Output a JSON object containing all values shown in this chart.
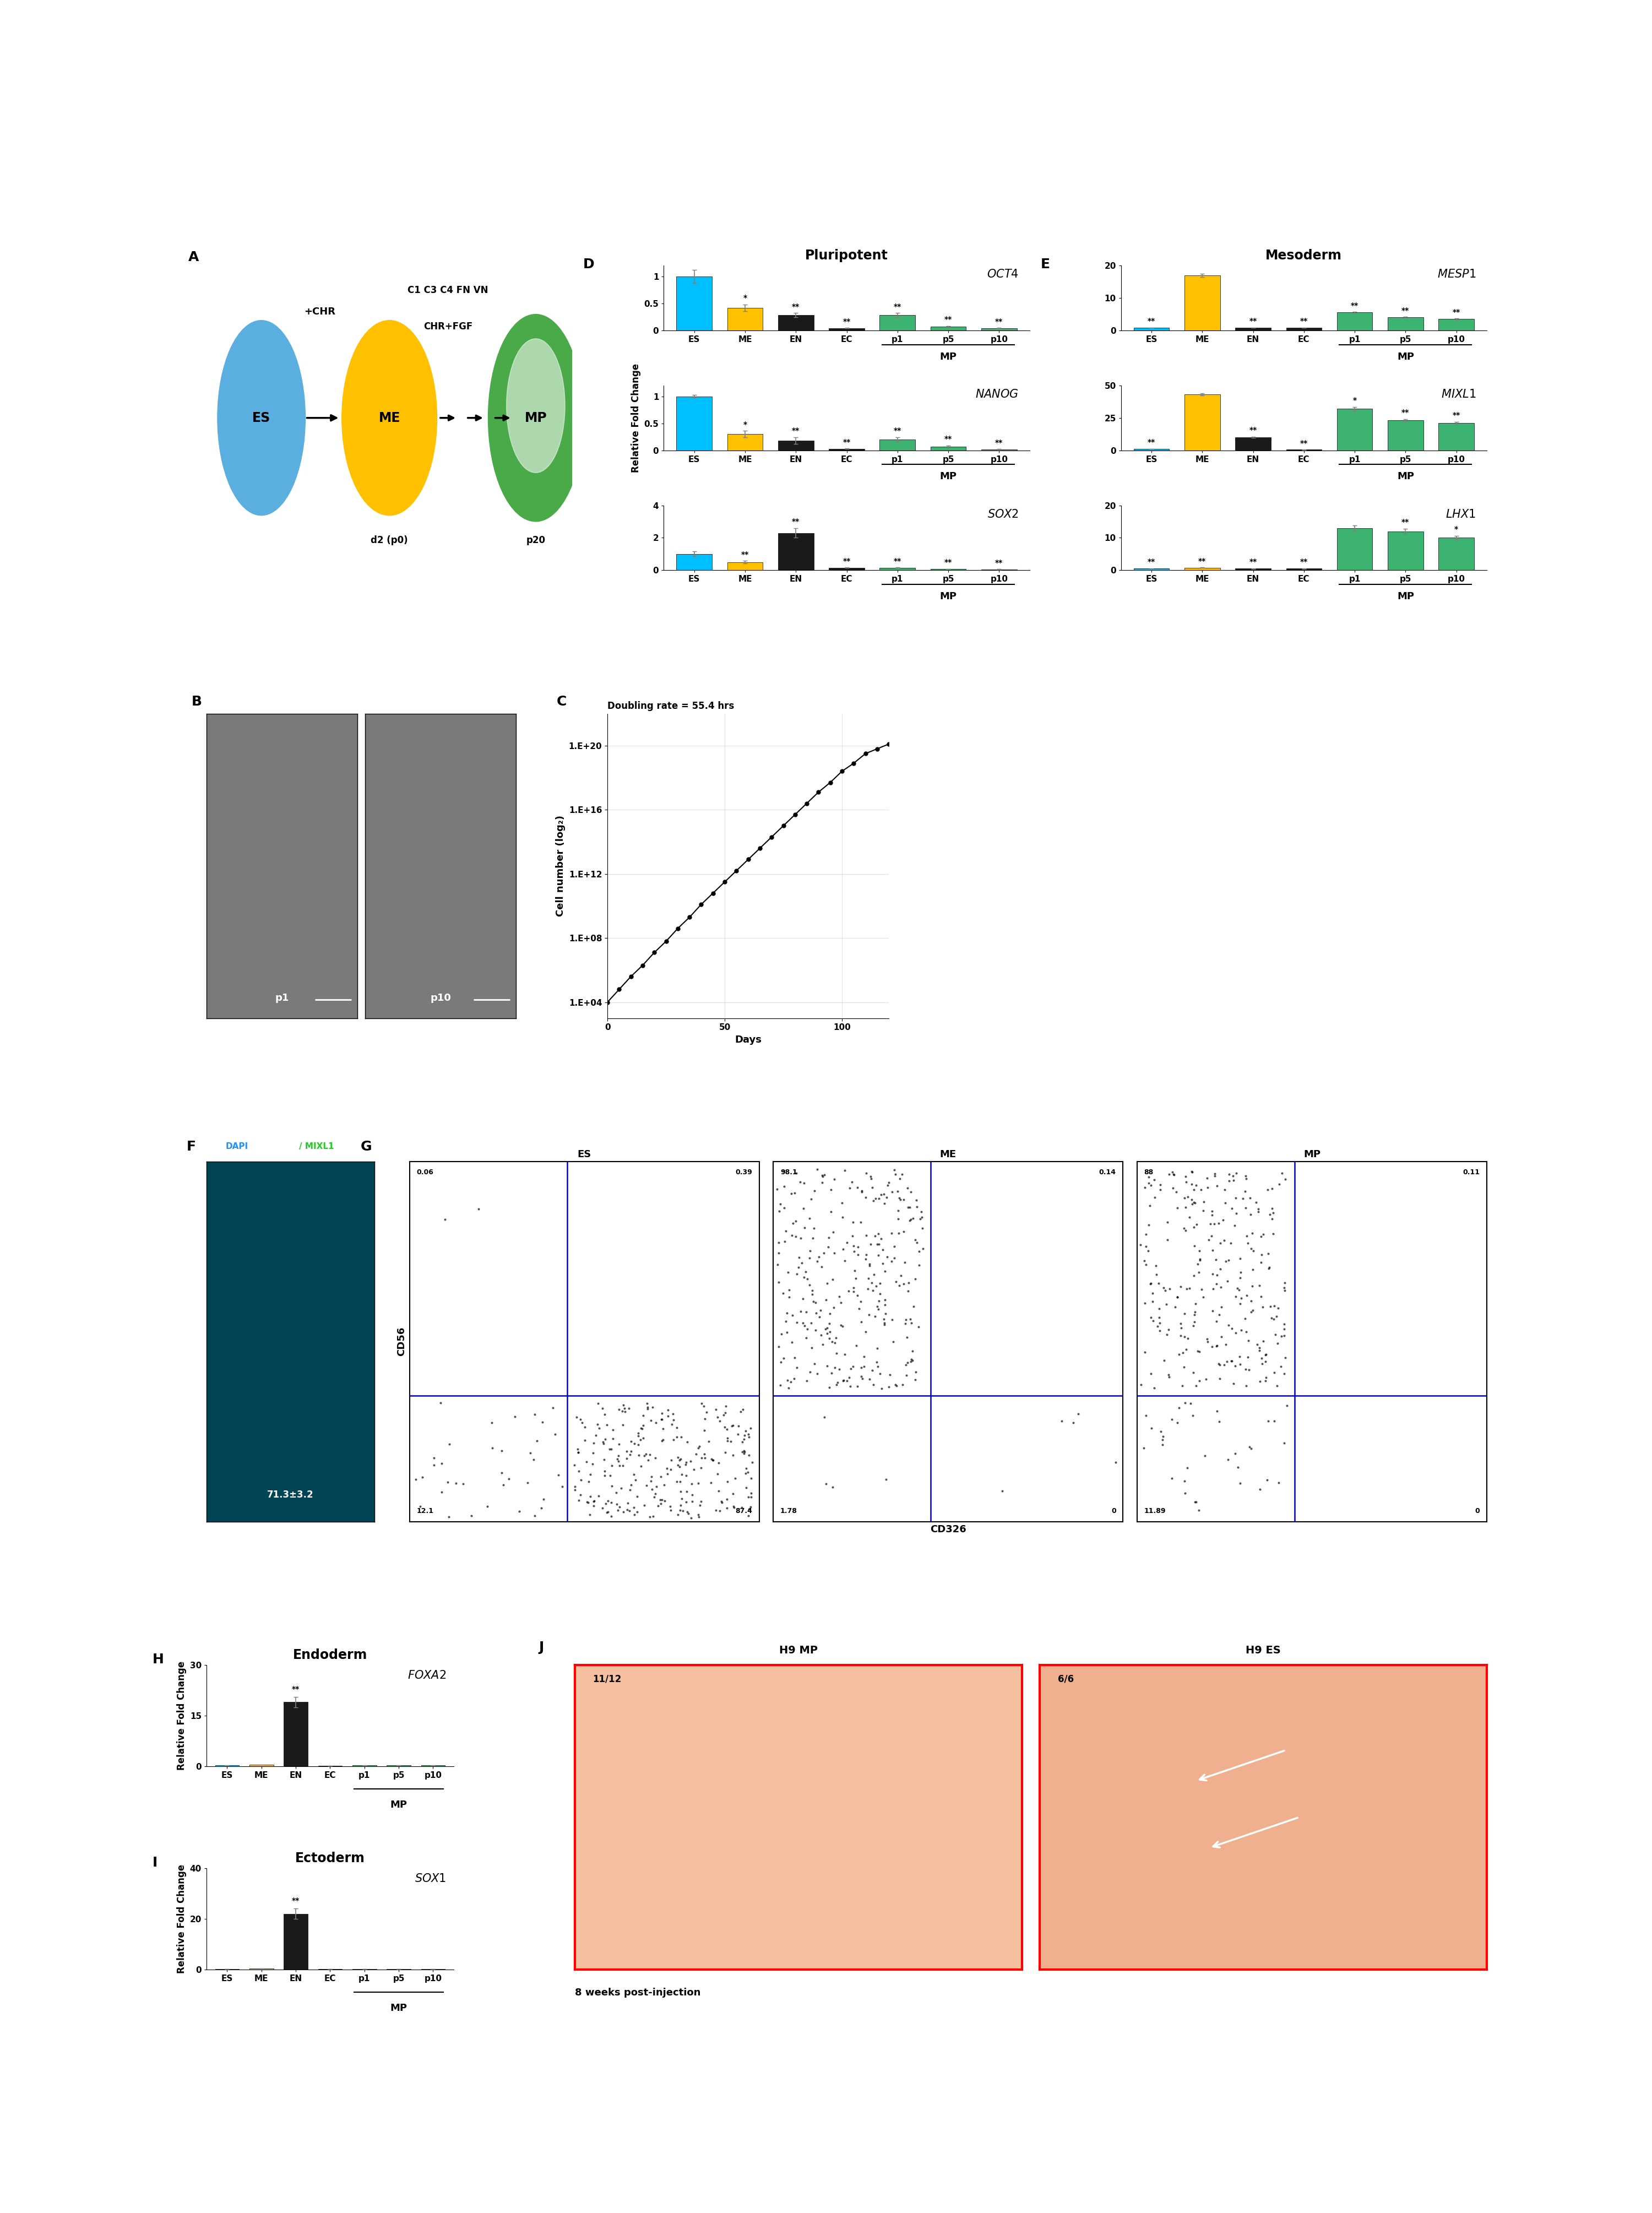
{
  "panel_labels": [
    "A",
    "B",
    "C",
    "D",
    "E",
    "F",
    "G",
    "H",
    "I",
    "J"
  ],
  "oct4": {
    "title": "OCT4",
    "ylim": [
      0,
      1.2
    ],
    "yticks": [
      0,
      0.5,
      1
    ],
    "values": [
      1.0,
      0.42,
      0.28,
      0.04,
      0.28,
      0.07,
      0.04
    ],
    "errors": [
      0.12,
      0.06,
      0.04,
      0.005,
      0.04,
      0.01,
      0.005
    ],
    "colors": [
      "#00bfff",
      "#ffc000",
      "#1a1a1a",
      "#1a1a1a",
      "#3cb371",
      "#3cb371",
      "#3cb371"
    ],
    "sig": [
      "",
      "*",
      "**",
      "**",
      "**",
      "**",
      "**"
    ],
    "categories": [
      "ES",
      "ME",
      "EN",
      "EC",
      "p1",
      "p5",
      "p10"
    ],
    "group_label": "MP"
  },
  "nanog": {
    "title": "NANOG",
    "ylim": [
      0,
      1.2
    ],
    "yticks": [
      0,
      0.5,
      1
    ],
    "values": [
      1.0,
      0.3,
      0.18,
      0.03,
      0.2,
      0.07,
      0.02
    ],
    "errors": [
      0.03,
      0.06,
      0.06,
      0.003,
      0.04,
      0.02,
      0.003
    ],
    "colors": [
      "#00bfff",
      "#ffc000",
      "#1a1a1a",
      "#1a1a1a",
      "#3cb371",
      "#3cb371",
      "#3cb371"
    ],
    "sig": [
      "",
      "*",
      "**",
      "**",
      "**",
      "**",
      "**"
    ],
    "categories": [
      "ES",
      "ME",
      "EN",
      "EC",
      "p1",
      "p5",
      "p10"
    ],
    "group_label": "MP"
  },
  "sox2": {
    "title": "SOX2",
    "ylim": [
      0,
      4
    ],
    "yticks": [
      0,
      2,
      4
    ],
    "values": [
      1.0,
      0.5,
      2.3,
      0.15,
      0.15,
      0.08,
      0.06
    ],
    "errors": [
      0.15,
      0.08,
      0.3,
      0.02,
      0.02,
      0.01,
      0.01
    ],
    "colors": [
      "#00bfff",
      "#ffc000",
      "#1a1a1a",
      "#1a1a1a",
      "#3cb371",
      "#3cb371",
      "#3cb371"
    ],
    "sig": [
      "",
      "**",
      "**",
      "**",
      "**",
      "**",
      "**"
    ],
    "categories": [
      "ES",
      "ME",
      "EN",
      "EC",
      "p1",
      "p5",
      "p10"
    ],
    "group_label": "MP"
  },
  "mesp1": {
    "title": "MESP1",
    "ylim": [
      0,
      20
    ],
    "yticks": [
      0,
      10,
      20
    ],
    "values": [
      0.8,
      17.0,
      0.8,
      0.8,
      5.5,
      4.0,
      3.5
    ],
    "errors": [
      0.05,
      0.5,
      0.05,
      0.05,
      0.2,
      0.15,
      0.15
    ],
    "colors": [
      "#00bfff",
      "#ffc000",
      "#1a1a1a",
      "#1a1a1a",
      "#3cb371",
      "#3cb371",
      "#3cb371"
    ],
    "sig": [
      "**",
      "",
      "**",
      "**",
      "**",
      "**",
      "**"
    ],
    "categories": [
      "ES",
      "ME",
      "EN",
      "EC",
      "p1",
      "p5",
      "p10"
    ],
    "group_label": "MP"
  },
  "mixl1": {
    "title": "MIXL1",
    "ylim": [
      0,
      50
    ],
    "yticks": [
      0,
      25,
      50
    ],
    "values": [
      1.0,
      43.0,
      10.0,
      0.5,
      32.0,
      23.0,
      21.0
    ],
    "errors": [
      0.1,
      0.8,
      0.5,
      0.05,
      1.5,
      1.0,
      1.0
    ],
    "colors": [
      "#00bfff",
      "#ffc000",
      "#1a1a1a",
      "#1a1a1a",
      "#3cb371",
      "#3cb371",
      "#3cb371"
    ],
    "sig": [
      "**",
      "",
      "**",
      "**",
      "*",
      "**",
      "**"
    ],
    "categories": [
      "ES",
      "ME",
      "EN",
      "EC",
      "p1",
      "p5",
      "p10"
    ],
    "group_label": "MP"
  },
  "lhx1": {
    "title": "LHX1",
    "ylim": [
      0,
      20
    ],
    "yticks": [
      0,
      10,
      20
    ],
    "values": [
      0.5,
      0.8,
      0.5,
      0.5,
      13.0,
      12.0,
      10.0
    ],
    "errors": [
      0.05,
      0.05,
      0.05,
      0.05,
      0.8,
      0.8,
      0.6
    ],
    "colors": [
      "#00bfff",
      "#ffc000",
      "#1a1a1a",
      "#1a1a1a",
      "#3cb371",
      "#3cb371",
      "#3cb371"
    ],
    "sig": [
      "**",
      "**",
      "**",
      "**",
      "",
      "**",
      "*"
    ],
    "categories": [
      "ES",
      "ME",
      "EN",
      "EC",
      "p1",
      "p5",
      "p10"
    ],
    "group_label": "MP"
  },
  "foxa2": {
    "title": "FOXA2",
    "ylim": [
      0,
      30
    ],
    "yticks": [
      0,
      15,
      30
    ],
    "values": [
      0.3,
      0.5,
      19.0,
      0.2,
      0.3,
      0.3,
      0.3
    ],
    "errors": [
      0.02,
      0.03,
      1.5,
      0.02,
      0.02,
      0.02,
      0.02
    ],
    "colors": [
      "#00bfff",
      "#ffc000",
      "#1a1a1a",
      "#1a1a1a",
      "#3cb371",
      "#3cb371",
      "#3cb371"
    ],
    "sig": [
      "",
      "",
      "**",
      "",
      "",
      "",
      ""
    ],
    "categories": [
      "ES",
      "ME",
      "EN",
      "EC",
      "p1",
      "p5",
      "p10"
    ],
    "group_label": "MP"
  },
  "sox1": {
    "title": "SOX1",
    "ylim": [
      0,
      40
    ],
    "yticks": [
      0,
      20,
      40
    ],
    "values": [
      0.3,
      0.5,
      22.0,
      0.2,
      0.3,
      0.3,
      0.3
    ],
    "errors": [
      0.02,
      0.03,
      2.0,
      0.02,
      0.02,
      0.02,
      0.02
    ],
    "colors": [
      "#00bfff",
      "#ffc000",
      "#1a1a1a",
      "#1a1a1a",
      "#3cb371",
      "#3cb371",
      "#3cb371"
    ],
    "sig": [
      "",
      "",
      "**",
      "",
      "",
      "",
      ""
    ],
    "categories": [
      "ES",
      "ME",
      "EN",
      "EC",
      "p1",
      "p5",
      "p10"
    ],
    "group_label": "MP"
  },
  "growth_curve": {
    "title": "Doubling rate = 55.4 hrs",
    "xlabel": "Days",
    "ylabel": "Cell number (log₂)",
    "ytick_labels": [
      "1.E+04",
      "1.E+08",
      "1.E+12",
      "1.E+16",
      "1.E+20"
    ],
    "ytick_values": [
      4,
      8,
      12,
      16,
      20
    ],
    "ylim": [
      3,
      22
    ],
    "xlim": [
      0,
      120
    ],
    "xticks": [
      0,
      50,
      100
    ],
    "x_data": [
      0,
      5,
      10,
      15,
      20,
      25,
      30,
      35,
      40,
      45,
      50,
      55,
      60,
      65,
      70,
      75,
      80,
      85,
      90,
      95,
      100,
      105,
      110,
      115,
      120
    ],
    "y_data": [
      4.0,
      4.8,
      5.6,
      6.3,
      7.1,
      7.8,
      8.6,
      9.3,
      10.1,
      10.8,
      11.5,
      12.2,
      12.9,
      13.6,
      14.3,
      15.0,
      15.7,
      16.4,
      17.1,
      17.7,
      18.4,
      18.9,
      19.5,
      19.8,
      20.1
    ]
  },
  "flow_cytometry": {
    "es_values": {
      "UL": "0.06",
      "UR": "0.39",
      "LL": "12.1",
      "LR": "87.4"
    },
    "me_values": {
      "UL": "98.1",
      "UR": "0.14",
      "LL": "1.78",
      "LR": "0"
    },
    "mp_values": {
      "UL": "88",
      "UR": "0.11",
      "LL": "11.89",
      "LR": "0"
    },
    "xlabel": "CD326",
    "ylabel": "CD56",
    "titles": [
      "ES",
      "ME",
      "MP"
    ]
  },
  "bg_color": "#ffffff",
  "bar_width": 0.7,
  "error_color": "gray",
  "fontsize_title": 16,
  "fontsize_label": 13,
  "fontsize_tick": 11,
  "fontsize_gene": 14,
  "fontsize_panel": 18
}
